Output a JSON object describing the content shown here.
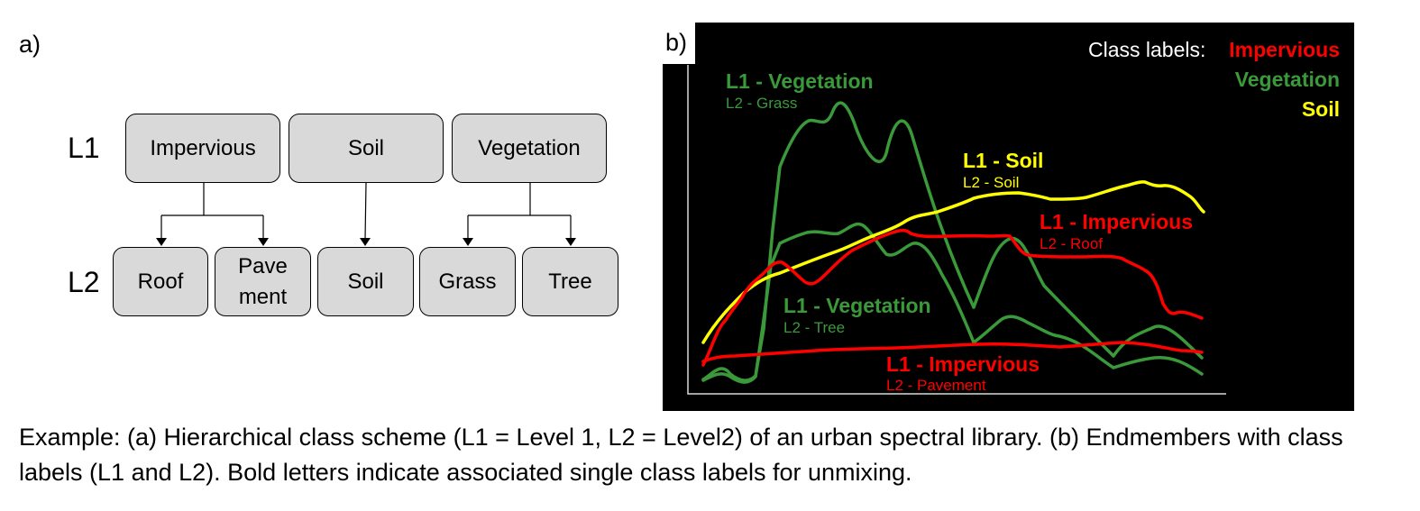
{
  "panel_a": {
    "label": "a)",
    "level1_label": "L1",
    "level2_label": "L2",
    "l1_nodes": [
      "Impervious",
      "Soil",
      "Vegetation"
    ],
    "l2_nodes": [
      "Roof",
      "Pave\nment",
      "Soil",
      "Grass",
      "Tree"
    ]
  },
  "panel_b": {
    "label": "b)",
    "legend": {
      "title": "Class labels:",
      "impervious": "Impervious",
      "vegetation": "Vegetation",
      "soil": "Soil"
    },
    "annotations": {
      "veg_grass_l1": "L1 - Vegetation",
      "veg_grass_l2": "L2 - Grass",
      "soil_l1": "L1 - Soil",
      "soil_l2": "L2 - Soil",
      "imp_roof_l1": "L1 - Impervious",
      "imp_roof_l2": "L2 - Roof",
      "veg_tree_l1": "L1 - Vegetation",
      "veg_tree_l2": "L2 - Tree",
      "imp_pave_l1": "L1 - Impervious",
      "imp_pave_l2": "L2 - Pavement"
    },
    "colors": {
      "impervious": "#ff0000",
      "vegetation": "#3a9a3a",
      "soil": "#ffff00",
      "background": "#000000",
      "axis": "#d9d9d9"
    }
  },
  "caption": "Example: (a) Hierarchical class scheme (L1 = Level 1, L2 = Level2) of an urban spectral library. (b) Endmembers with class labels (L1 and L2). Bold letters indicate associated single class labels for unmixing."
}
